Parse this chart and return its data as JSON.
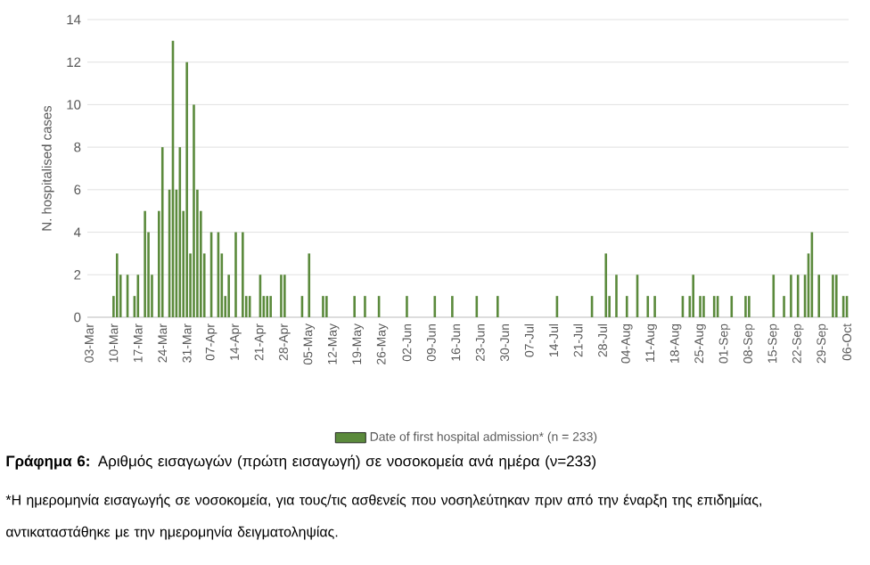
{
  "chart_data": {
    "type": "bar",
    "categories": [
      "03-Mar",
      null,
      null,
      null,
      null,
      null,
      null,
      "10-Mar",
      null,
      null,
      null,
      null,
      null,
      null,
      "17-Mar",
      null,
      null,
      null,
      null,
      null,
      null,
      "24-Mar",
      null,
      null,
      null,
      null,
      null,
      null,
      "31-Mar",
      null,
      null,
      null,
      null,
      null,
      null,
      "07-Apr",
      null,
      null,
      null,
      null,
      null,
      null,
      "14-Apr",
      null,
      null,
      null,
      null,
      null,
      null,
      "21-Apr",
      null,
      null,
      null,
      null,
      null,
      null,
      "28-Apr",
      null,
      null,
      null,
      null,
      null,
      null,
      "05-May",
      null,
      null,
      null,
      null,
      null,
      null,
      "12-May",
      null,
      null,
      null,
      null,
      null,
      null,
      "19-May",
      null,
      null,
      null,
      null,
      null,
      null,
      "26-May",
      null,
      null,
      null,
      null,
      null,
      null,
      "02-Jun",
      null,
      null,
      null,
      null,
      null,
      null,
      "09-Jun",
      null,
      null,
      null,
      null,
      null,
      null,
      "16-Jun",
      null,
      null,
      null,
      null,
      null,
      null,
      "23-Jun",
      null,
      null,
      null,
      null,
      null,
      null,
      "30-Jun",
      null,
      null,
      null,
      null,
      null,
      null,
      "07-Jul",
      null,
      null,
      null,
      null,
      null,
      null,
      "14-Jul",
      null,
      null,
      null,
      null,
      null,
      null,
      "21-Jul",
      null,
      null,
      null,
      null,
      null,
      null,
      "28-Jul",
      null,
      null,
      null,
      null,
      null,
      null,
      "04-Aug",
      null,
      null,
      null,
      null,
      null,
      null,
      "11-Aug",
      null,
      null,
      null,
      null,
      null,
      null,
      "18-Aug",
      null,
      null,
      null,
      null,
      null,
      null,
      "25-Aug",
      null,
      null,
      null,
      null,
      null,
      null,
      "01-Sep",
      null,
      null,
      null,
      null,
      null,
      null,
      "08-Sep",
      null,
      null,
      null,
      null,
      null,
      null,
      "15-Sep",
      null,
      null,
      null,
      null,
      null,
      null,
      "22-Sep",
      null,
      null,
      null,
      null,
      null,
      null,
      "29-Sep",
      null,
      null,
      null,
      null,
      null,
      null,
      "06-Oct"
    ],
    "series": [
      {
        "name": "Date of first hospital admission* (n = 233)",
        "color": "#5b8a3c",
        "values": [
          0,
          0,
          0,
          0,
          0,
          0,
          0,
          1,
          3,
          2,
          0,
          2,
          0,
          1,
          2,
          0,
          5,
          4,
          2,
          0,
          5,
          8,
          0,
          6,
          13,
          6,
          8,
          5,
          12,
          3,
          10,
          6,
          5,
          3,
          0,
          4,
          0,
          4,
          3,
          1,
          2,
          0,
          4,
          0,
          4,
          1,
          1,
          0,
          0,
          2,
          1,
          1,
          1,
          0,
          0,
          2,
          2,
          0,
          0,
          0,
          0,
          1,
          0,
          3,
          0,
          0,
          0,
          1,
          1,
          0,
          0,
          0,
          0,
          0,
          0,
          0,
          1,
          0,
          0,
          1,
          0,
          0,
          0,
          1,
          0,
          0,
          0,
          0,
          0,
          0,
          0,
          1,
          0,
          0,
          0,
          0,
          0,
          0,
          0,
          1,
          0,
          0,
          0,
          0,
          1,
          0,
          0,
          0,
          0,
          0,
          0,
          1,
          0,
          0,
          0,
          0,
          0,
          1,
          0,
          0,
          0,
          0,
          0,
          0,
          0,
          0,
          0,
          0,
          0,
          0,
          0,
          0,
          0,
          0,
          1,
          0,
          0,
          0,
          0,
          0,
          0,
          0,
          0,
          0,
          1,
          0,
          0,
          0,
          3,
          1,
          0,
          2,
          0,
          0,
          1,
          0,
          0,
          2,
          0,
          0,
          1,
          0,
          1,
          0,
          0,
          0,
          0,
          0,
          0,
          0,
          1,
          0,
          1,
          2,
          0,
          1,
          1,
          0,
          0,
          1,
          1,
          0,
          0,
          0,
          1,
          0,
          0,
          0,
          1,
          1,
          0,
          0,
          0,
          0,
          0,
          0,
          2,
          0,
          0,
          1,
          0,
          2,
          0,
          2,
          0,
          2,
          3,
          4,
          0,
          2,
          0,
          0,
          0,
          2,
          2,
          0,
          1,
          1
        ]
      }
    ],
    "ylabel": "N. hospitalised cases",
    "ylim": [
      0,
      14
    ],
    "yticks": [
      0,
      2,
      4,
      6,
      8,
      10,
      12,
      14
    ],
    "grid": "y",
    "legend": "bottom",
    "annotations": [
      "**Γράφημα 6:** Αριθμός εισαγωγών (πρώτη εισαγωγή) σε νοσοκομεία ανά ημέρα (ν=233)",
      "*Η ημερομηνία εισαγωγής σε νοσοκομεία, για τους/τις ασθενείς που νοσηλεύτηκαν πριν από την έναρξη της επιδημίας, αντικαταστάθηκε με την ημερομηνία δειγματοληψίας."
    ]
  }
}
